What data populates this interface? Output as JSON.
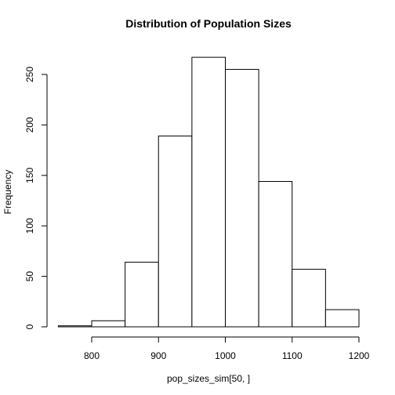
{
  "chart_data": {
    "type": "bar",
    "title": "Distribution of Population Sizes",
    "xlabel": "pop_sizes_sim[50, ]",
    "ylabel": "Frequency",
    "bins": [
      {
        "start": 750,
        "end": 800,
        "count": 1
      },
      {
        "start": 800,
        "end": 850,
        "count": 6
      },
      {
        "start": 850,
        "end": 900,
        "count": 64
      },
      {
        "start": 900,
        "end": 950,
        "count": 189
      },
      {
        "start": 950,
        "end": 1000,
        "count": 267
      },
      {
        "start": 1000,
        "end": 1050,
        "count": 255
      },
      {
        "start": 1050,
        "end": 1100,
        "count": 144
      },
      {
        "start": 1100,
        "end": 1150,
        "count": 57
      },
      {
        "start": 1150,
        "end": 1200,
        "count": 17
      }
    ],
    "xticks": [
      800,
      900,
      1000,
      1100,
      1200
    ],
    "yticks": [
      0,
      50,
      100,
      150,
      200,
      250
    ],
    "xlim": [
      750,
      1200
    ],
    "ylim": [
      0,
      267
    ],
    "grid": false,
    "legend": "none"
  }
}
